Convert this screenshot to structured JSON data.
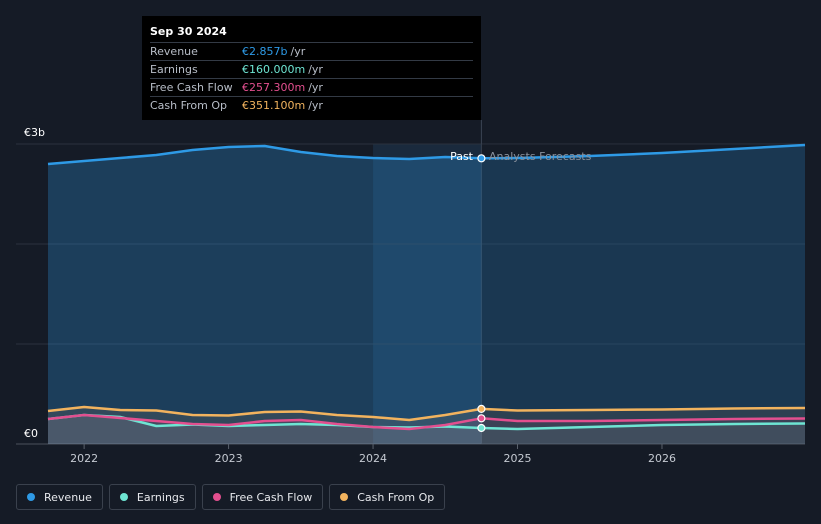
{
  "tooltip": {
    "date": "Sep 30 2024",
    "rows": [
      {
        "label": "Revenue",
        "value": "€2.857b",
        "unit": "/yr",
        "color": "#2e9ae6"
      },
      {
        "label": "Earnings",
        "value": "€160.000m",
        "unit": "/yr",
        "color": "#6ee5d3"
      },
      {
        "label": "Free Cash Flow",
        "value": "€257.300m",
        "unit": "/yr",
        "color": "#e34f8f"
      },
      {
        "label": "Cash From Op",
        "value": "€351.100m",
        "unit": "/yr",
        "color": "#f2b35e"
      }
    ]
  },
  "legend": [
    {
      "label": "Revenue",
      "color": "#2e9ae6"
    },
    {
      "label": "Earnings",
      "color": "#6ee5d3"
    },
    {
      "label": "Free Cash Flow",
      "color": "#e34f8f"
    },
    {
      "label": "Cash From Op",
      "color": "#f2b35e"
    }
  ],
  "chart_data": {
    "type": "area",
    "ylabel_top": "€3b",
    "ylabel_bottom": "€0",
    "ylim": [
      0,
      3000
    ],
    "xlim": [
      2021.75,
      2026.99
    ],
    "x_ticks": [
      2022,
      2023,
      2024,
      2025,
      2026
    ],
    "x_tick_labels": [
      "2022",
      "2023",
      "2024",
      "2025",
      "2026"
    ],
    "divider_x": 2024.75,
    "past_label": "Past",
    "forecast_label": "Analysts Forecasts",
    "highlight_range": [
      2024.0,
      2024.75
    ],
    "series": [
      {
        "name": "Revenue",
        "color": "#2e9ae6",
        "x": [
          2021.75,
          2022.0,
          2022.25,
          2022.5,
          2022.75,
          2023.0,
          2023.25,
          2023.5,
          2023.75,
          2024.0,
          2024.25,
          2024.5,
          2024.75,
          2025.0,
          2025.5,
          2026.0,
          2026.5,
          2026.99
        ],
        "y": [
          2800,
          2830,
          2860,
          2890,
          2940,
          2970,
          2980,
          2920,
          2880,
          2860,
          2850,
          2870,
          2857,
          2860,
          2880,
          2910,
          2950,
          2990
        ]
      },
      {
        "name": "Earnings",
        "color": "#6ee5d3",
        "x": [
          2021.75,
          2022.0,
          2022.25,
          2022.5,
          2022.75,
          2023.0,
          2023.25,
          2023.5,
          2023.75,
          2024.0,
          2024.25,
          2024.5,
          2024.75,
          2025.0,
          2025.5,
          2026.0,
          2026.5,
          2026.99
        ],
        "y": [
          250,
          290,
          270,
          180,
          195,
          180,
          190,
          200,
          190,
          170,
          165,
          175,
          160,
          150,
          170,
          190,
          200,
          205
        ]
      },
      {
        "name": "Free Cash Flow",
        "color": "#e34f8f",
        "x": [
          2021.75,
          2022.0,
          2022.25,
          2022.5,
          2022.75,
          2023.0,
          2023.25,
          2023.5,
          2023.75,
          2024.0,
          2024.25,
          2024.5,
          2024.75,
          2025.0,
          2025.5,
          2026.0,
          2026.5,
          2026.99
        ],
        "y": [
          250,
          290,
          260,
          230,
          200,
          190,
          230,
          240,
          200,
          170,
          150,
          190,
          257,
          230,
          230,
          240,
          250,
          255
        ]
      },
      {
        "name": "Cash From Op",
        "color": "#f2b35e",
        "x": [
          2021.75,
          2022.0,
          2022.25,
          2022.5,
          2022.75,
          2023.0,
          2023.25,
          2023.5,
          2023.75,
          2024.0,
          2024.25,
          2024.5,
          2024.75,
          2025.0,
          2025.5,
          2026.0,
          2026.5,
          2026.99
        ],
        "y": [
          330,
          370,
          340,
          335,
          290,
          285,
          320,
          325,
          290,
          270,
          240,
          290,
          351,
          335,
          340,
          345,
          355,
          360
        ]
      }
    ]
  }
}
